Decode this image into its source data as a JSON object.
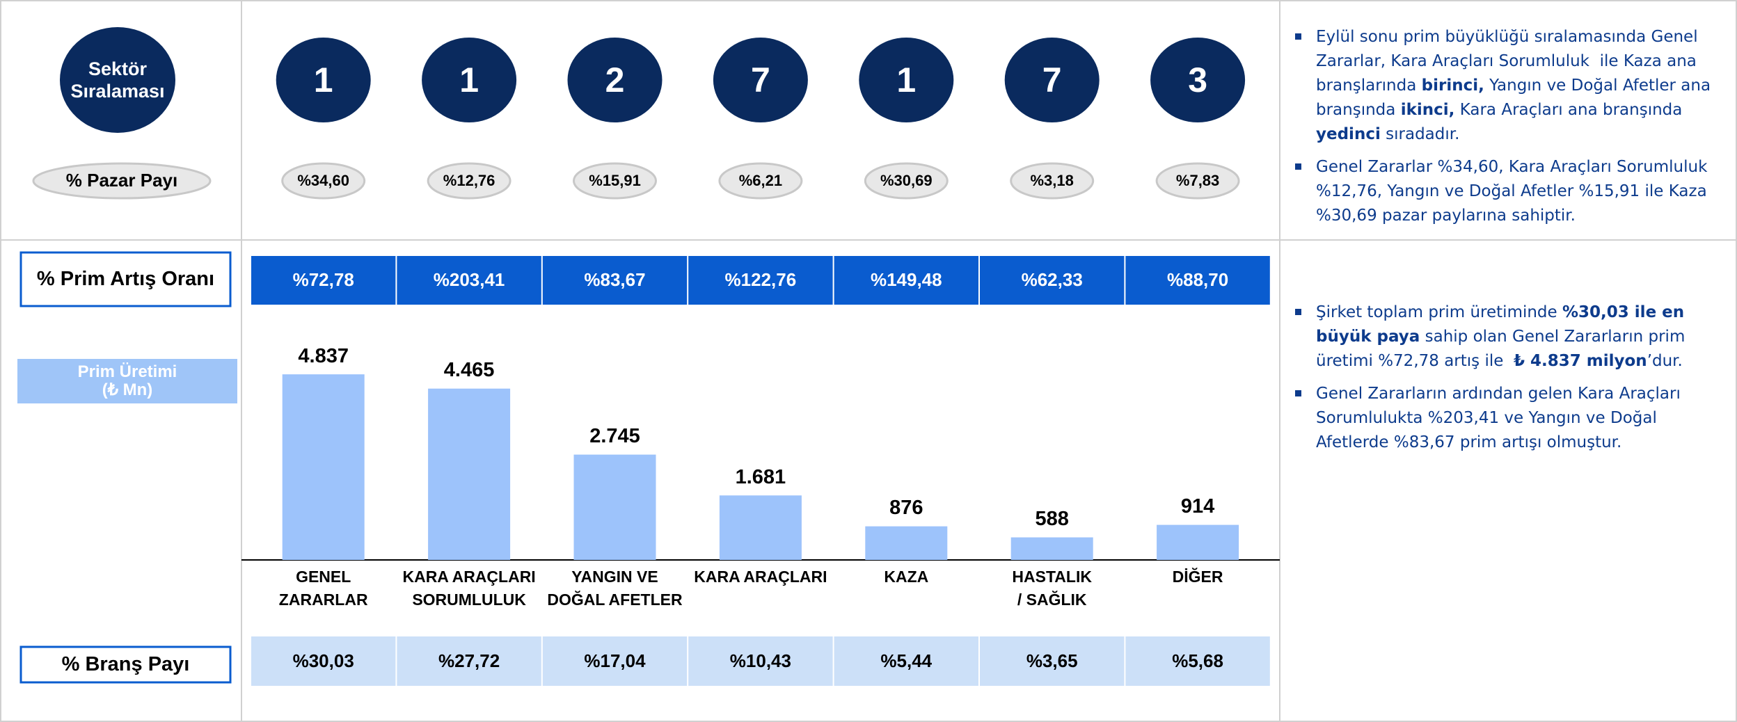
{
  "ranking_label": "Sektör\nSıralaması",
  "ranks": [
    "1",
    "1",
    "2",
    "7",
    "1",
    "7",
    "3"
  ],
  "market_share_label": "%  Pazar Payı",
  "market_shares": [
    "%34,60",
    "%12,76",
    "%15,91",
    "%6,21",
    "%30,69",
    "%3,18",
    "%7,83"
  ],
  "growth_label": "% Prim Artış Oranı",
  "growth_rates": [
    "%72,78",
    "%203,41",
    "%83,67",
    "%122,76",
    "%149,48",
    "%62,33",
    "%88,70"
  ],
  "branch_share_label": "% Branş Payı",
  "branch_shares": [
    "%30,03",
    "%27,72",
    "%17,04",
    "%10,43",
    "%5,44",
    "%3,65",
    "%5,68"
  ],
  "chart_data": {
    "type": "bar",
    "y_label": "Prim Üretimi\n(₺ Mn)",
    "categories": [
      "GENEL ZARARLAR",
      "KARA ARAÇLARI\nSORUMLULUK",
      "YANGIN VE\nDOĞAL AFETLER",
      "KARA ARAÇLARI",
      "KAZA",
      "HASTALIK\n/ SAĞLIK",
      "DİĞER"
    ],
    "values": [
      4837,
      4465,
      2745,
      1681,
      876,
      588,
      914
    ],
    "value_labels": [
      "4.837",
      "4.465",
      "2.745",
      "1.681",
      "876",
      "588",
      "914"
    ],
    "color": "#9dc3fb",
    "ylim": [
      0,
      6000
    ]
  },
  "bullets_top": [
    [
      {
        "text": "Eylül sonu prim büyüklüğü sıralamasında Genel Zararlar, Kara Araçları Sorumluluk  ile Kaza ana branşlarında ",
        "bold": false
      },
      {
        "text": "birinci,",
        "bold": true
      },
      {
        "text": " Yangın ve Doğal Afetler ana branşında ",
        "bold": false
      },
      {
        "text": "ikinci,",
        "bold": true
      },
      {
        "text": " Kara Araçları ana branşında ",
        "bold": false
      },
      {
        "text": "yedinci",
        "bold": true
      },
      {
        "text": " sıradadır.",
        "bold": false
      }
    ],
    [
      {
        "text": "Genel Zararlar %34,60, Kara Araçları Sorumluluk %12,76, Yangın ve Doğal Afetler %15,91 ile Kaza %30,69 pazar paylarına sahiptir.",
        "bold": false
      }
    ]
  ],
  "bullets_bottom": [
    [
      {
        "text": "Şirket toplam prim üretiminde ",
        "bold": false
      },
      {
        "text": "%30,03 ile en büyük paya",
        "bold": true
      },
      {
        "text": " sahip olan Genel Zararların prim üretimi %72,78 artış ile  ",
        "bold": false
      },
      {
        "text": "₺ 4.837 milyon",
        "bold": true
      },
      {
        "text": "’dur.",
        "bold": false
      }
    ],
    [
      {
        "text": "Genel Zararların ardından gelen Kara Araçları Sorumlulukta %203,41 ve Yangın ve Doğal Afetlerde %83,67 prim artışı olmuştur.",
        "bold": false
      }
    ]
  ]
}
